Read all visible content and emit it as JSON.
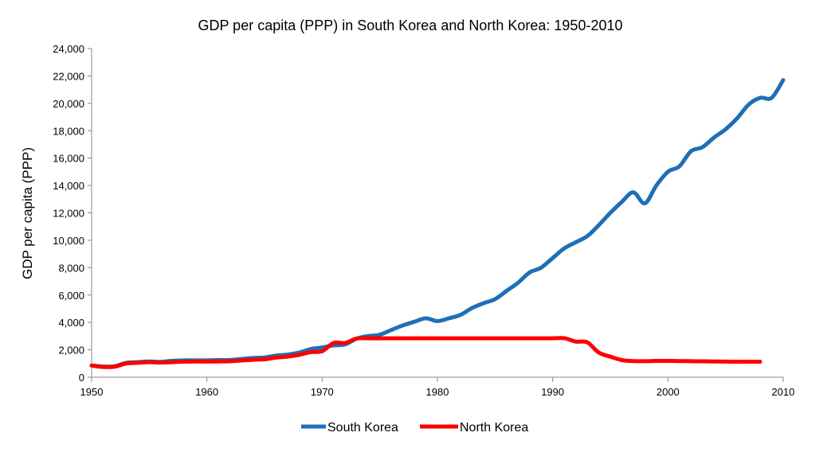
{
  "chart_data": {
    "type": "line",
    "title": "GDP per capita (PPP) in South Korea and North Korea: 1950-2010",
    "xlabel": "",
    "ylabel": "GDP per capita (PPP)",
    "xlim": [
      1950,
      2010
    ],
    "ylim": [
      0,
      24000
    ],
    "x_ticks": [
      1950,
      1960,
      1970,
      1980,
      1990,
      2000,
      2010
    ],
    "y_ticks": [
      0,
      2000,
      4000,
      6000,
      8000,
      10000,
      12000,
      14000,
      16000,
      18000,
      20000,
      22000,
      24000
    ],
    "y_tick_labels": [
      "0",
      "2,000",
      "4,000",
      "6,000",
      "8,000",
      "10,000",
      "12,000",
      "14,000",
      "16,000",
      "18,000",
      "20,000",
      "22,000",
      "24,000"
    ],
    "grid": false,
    "legend_placement": "bottom",
    "series": [
      {
        "name": "South Korea",
        "color": "#1f6fb5",
        "start_year": 1950,
        "values": [
          850,
          780,
          800,
          1050,
          1100,
          1150,
          1120,
          1200,
          1230,
          1230,
          1230,
          1250,
          1260,
          1330,
          1400,
          1440,
          1580,
          1650,
          1800,
          2050,
          2170,
          2320,
          2400,
          2820,
          3000,
          3100,
          3450,
          3780,
          4050,
          4300,
          4100,
          4300,
          4550,
          5050,
          5400,
          5700,
          6300,
          6900,
          7650,
          8000,
          8700,
          9400,
          9850,
          10300,
          11100,
          12000,
          12800,
          13500,
          12700,
          14000,
          15000,
          15400,
          16500,
          16800,
          17500,
          18100,
          18900,
          19900,
          20400,
          20400,
          21700
        ]
      },
      {
        "name": "North Korea",
        "color": "#ff0000",
        "start_year": 1950,
        "values": [
          850,
          750,
          770,
          1000,
          1050,
          1100,
          1070,
          1100,
          1130,
          1150,
          1140,
          1150,
          1160,
          1220,
          1270,
          1310,
          1430,
          1500,
          1630,
          1830,
          1900,
          2500,
          2500,
          2830,
          2841,
          2841,
          2841,
          2841,
          2841,
          2841,
          2841,
          2841,
          2841,
          2841,
          2841,
          2841,
          2841,
          2841,
          2841,
          2841,
          2841,
          2850,
          2600,
          2550,
          1800,
          1500,
          1250,
          1180,
          1170,
          1190,
          1190,
          1180,
          1170,
          1160,
          1150,
          1140,
          1130,
          1130,
          1130
        ]
      }
    ]
  }
}
